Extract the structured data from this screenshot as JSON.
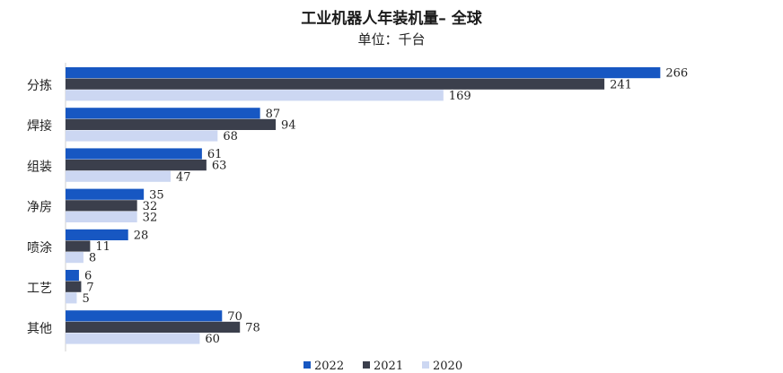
{
  "chart_data": {
    "type": "bar",
    "orientation": "horizontal",
    "title": "工业机器人年装机量– 全球",
    "subtitle": "单位：千台",
    "categories": [
      "分拣",
      "焊接",
      "组装",
      "净房",
      "喷涂",
      "工艺",
      "其他"
    ],
    "series": [
      {
        "name": "2022",
        "color": "#1757c2",
        "values": [
          266,
          87,
          61,
          35,
          28,
          6,
          70
        ]
      },
      {
        "name": "2021",
        "color": "#3b3f4c",
        "values": [
          241,
          94,
          63,
          32,
          11,
          7,
          78
        ]
      },
      {
        "name": "2020",
        "color": "#ccd7f2",
        "values": [
          169,
          68,
          47,
          32,
          8,
          5,
          60
        ]
      }
    ],
    "xlim": [
      0,
      270
    ],
    "grid": false,
    "legend_position": "bottom"
  }
}
